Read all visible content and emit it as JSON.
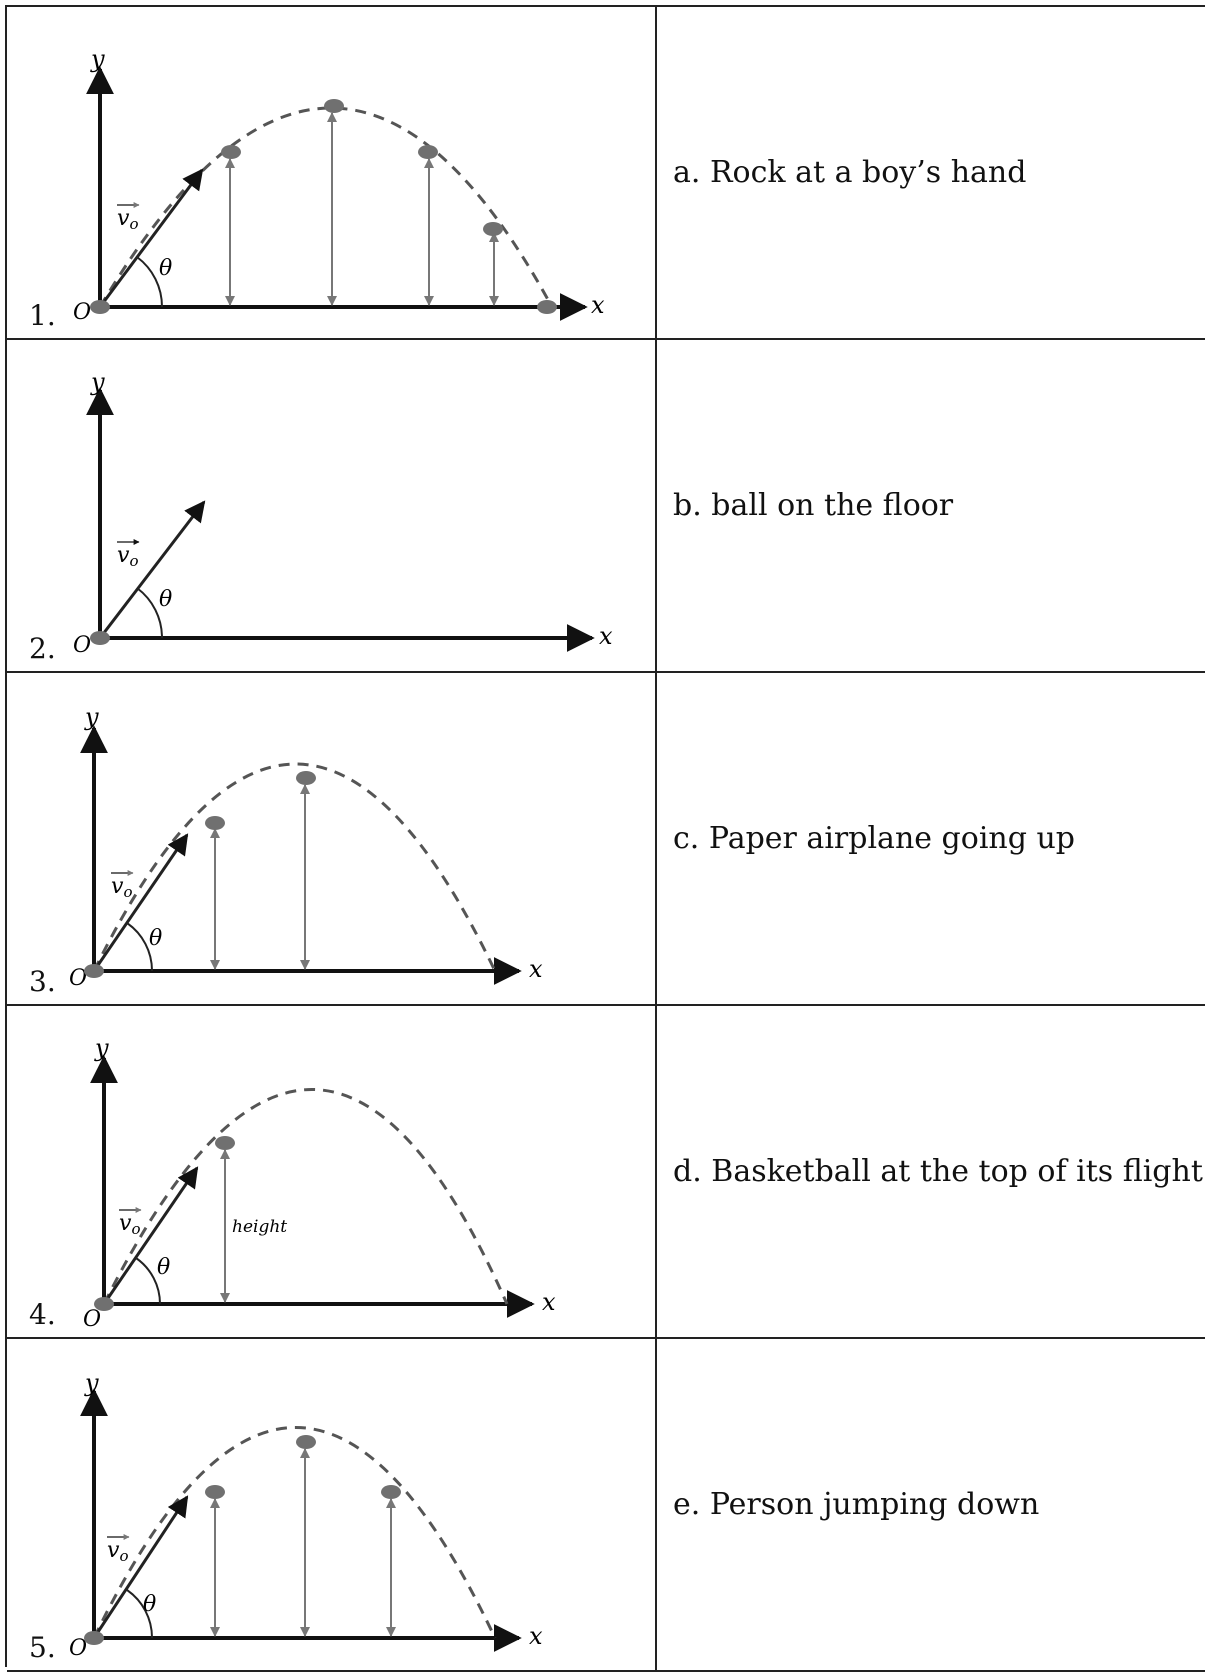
{
  "rows": [
    {
      "number": "1.",
      "description": "a. Rock at a boy’s hand"
    },
    {
      "number": "2.",
      "description": "b. ball on the floor"
    },
    {
      "number": "3.",
      "description": "c. Paper airplane going up"
    },
    {
      "number": "4.",
      "description": "d. Basketball at the top of its flight"
    },
    {
      "number": "5.",
      "description": "e. Person jumping down"
    }
  ],
  "labels": {
    "y_axis": "y",
    "x_axis": "x",
    "origin": "O",
    "velocity": "v",
    "velocity_sub": "o",
    "angle": "θ",
    "height": "height"
  },
  "colors": {
    "axis": "#111111",
    "trajectory": "#555555",
    "ball": "#707070",
    "height_line": "#777777",
    "border": "#222222"
  }
}
